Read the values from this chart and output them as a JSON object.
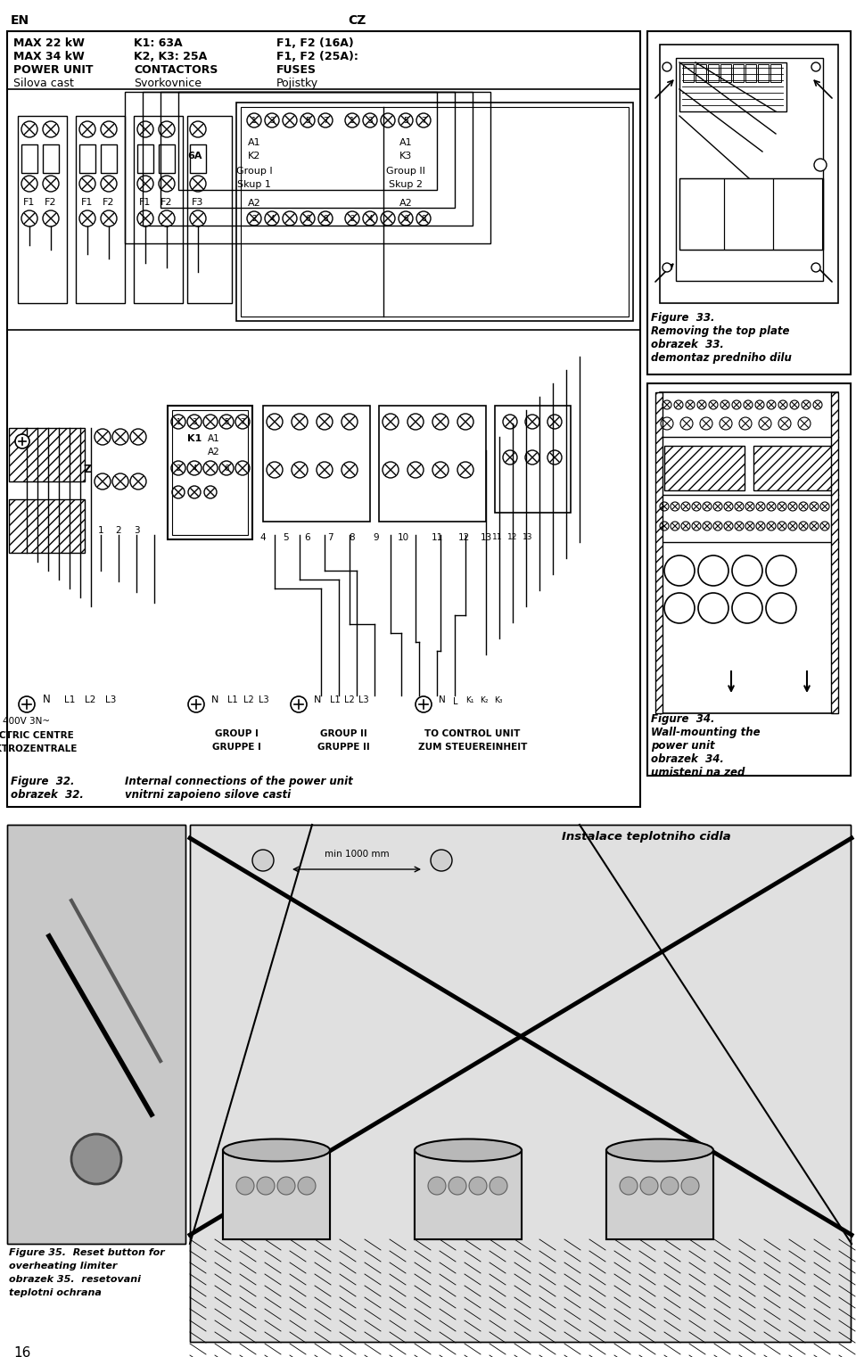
{
  "bg_color": "#ffffff",
  "page_width": 9.6,
  "page_height": 15.22,
  "header_en": "EN",
  "header_cz": "CZ",
  "page_number": "16",
  "top_left_texts": [
    [
      "MAX 22 kW",
      "K1: 63A",
      "F1, F2 (16A)"
    ],
    [
      "MAX 34 kW",
      "K2, K3: 25A",
      "F1, F2 (25A):"
    ],
    [
      "POWER UNIT",
      "CONTACTORS",
      "FUSES"
    ],
    [
      "Silova cast",
      "Svorkovnice",
      "Pojistky"
    ]
  ],
  "fig32_caption_left": [
    "Figure  32.",
    "obrazek  32."
  ],
  "fig32_caption_right": [
    "Internal connections of the power unit",
    "vnitrni zapoieno silove casti"
  ],
  "fig33_caption": [
    "Figure  33.",
    "Removing the top plate",
    "obrazek  33.",
    "demontaz predniho dilu"
  ],
  "fig34_caption": [
    "Figure  34.",
    "Wall-mounting the",
    "power unit",
    "obrazek  34.",
    "umisteni na zed"
  ],
  "fig35_caption": [
    "Figure 35.  Reset button for",
    "overheating limiter",
    "obrazek 35.  resetovani",
    "teplotni ochrana"
  ],
  "bottom_text": "Instalace teplotniho cidla",
  "bottom_label": "min 1000 mm"
}
